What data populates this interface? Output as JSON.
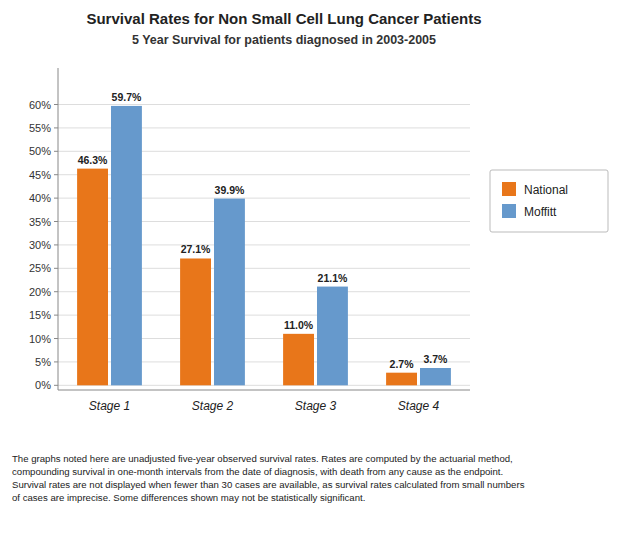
{
  "chart_data": {
    "type": "bar",
    "title": "Survival Rates for Non Small Cell Lung Cancer Patients",
    "subtitle": "5 Year Survival for patients diagnosed in 2003-2005",
    "categories": [
      "Stage 1",
      "Stage 2",
      "Stage 3",
      "Stage 4"
    ],
    "series": [
      {
        "name": "National",
        "color": "#E8761A",
        "values": [
          46.3,
          27.1,
          11.0,
          2.7
        ],
        "value_labels": [
          "46.3%",
          "27.1%",
          "11.0%",
          "2.7%"
        ]
      },
      {
        "name": "Moffitt",
        "color": "#6699CC",
        "values": [
          59.7,
          39.9,
          21.1,
          3.7
        ],
        "value_labels": [
          "59.7%",
          "39.9%",
          "21.1%",
          "3.7%"
        ]
      }
    ],
    "ylim": [
      -1,
      67.8
    ],
    "yticks": [
      {
        "value": 0,
        "label": "0%"
      },
      {
        "value": 5,
        "label": "5%"
      },
      {
        "value": 10,
        "label": "10%"
      },
      {
        "value": 15,
        "label": "15%"
      },
      {
        "value": 20,
        "label": "20%"
      },
      {
        "value": 25,
        "label": "25%"
      },
      {
        "value": 30,
        "label": "30%"
      },
      {
        "value": 35,
        "label": "35%"
      },
      {
        "value": 40,
        "label": "40%"
      },
      {
        "value": 45,
        "label": "45%"
      },
      {
        "value": 50,
        "label": "50%"
      },
      {
        "value": 55,
        "label": "55%"
      },
      {
        "value": 60,
        "label": "60%"
      }
    ],
    "grid": true,
    "legend": "right",
    "data_labels": true,
    "annotations": [
      "The graphs noted here are unadjusted five-year observed survival rates. Rates are computed by the actuarial method,\ncompounding survival in one-month intervals from the date of diagnosis, with death from any cause as the endpoint.\nSurvival rates are not displayed when fewer than 30 cases are available, as survival rates calculated from small numbers\nof cases are imprecise. Some differences shown may not be statistically significant."
    ]
  }
}
